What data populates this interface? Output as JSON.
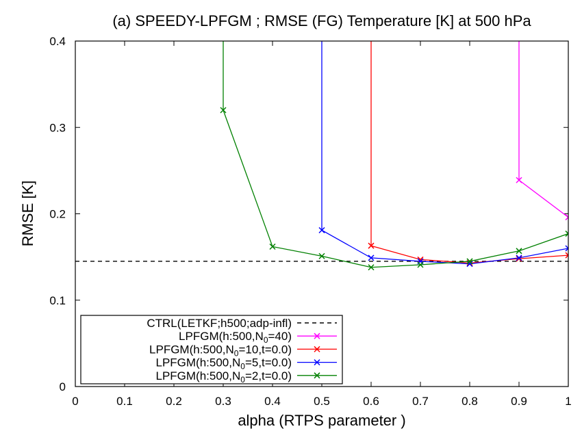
{
  "chart_data": {
    "type": "line",
    "title": "(a) SPEEDY-LPFGM ; RMSE (FG) Temperature [K] at 500 hPa",
    "xlabel": "alpha (RTPS parameter )",
    "ylabel": "RMSE [K]",
    "xlim": [
      0,
      1
    ],
    "ylim": [
      0,
      0.4
    ],
    "xticks": [
      0,
      0.1,
      0.2,
      0.3,
      0.4,
      0.5,
      0.6,
      0.7,
      0.8,
      0.9,
      1
    ],
    "yticks": [
      0,
      0.1,
      0.2,
      0.3,
      0.4
    ],
    "xtick_labels": [
      "0",
      "0.1",
      "0.2",
      "0.3",
      "0.4",
      "0.5",
      "0.6",
      "0.7",
      "0.8",
      "0.9",
      "1"
    ],
    "ytick_labels": [
      "0",
      "0.1",
      "0.2",
      "0.3",
      "0.4"
    ],
    "grid": false,
    "legend_position": "bottom-left",
    "reference_line": {
      "label": "CTRL(LETKF;h500;adp-infl)",
      "y": 0.145,
      "color": "#000000",
      "style": "dashed"
    },
    "series": [
      {
        "label_prefix": "LPFGM(h:500,N",
        "label_sub": "0",
        "label_suffix": "=40)",
        "color": "#ff00ff",
        "x": [
          0.9,
          0.9,
          1.0
        ],
        "y": [
          0.45,
          0.239,
          0.196
        ],
        "markers": [
          false,
          true,
          true
        ]
      },
      {
        "label_prefix": "LPFGM(h:500,N",
        "label_sub": "0",
        "label_suffix": "=10,t=0.0)",
        "color": "#ff0000",
        "x": [
          0.6,
          0.6,
          0.7,
          0.8,
          0.9,
          1.0
        ],
        "y": [
          0.45,
          0.163,
          0.147,
          0.143,
          0.148,
          0.152
        ],
        "markers": [
          false,
          true,
          true,
          true,
          true,
          true
        ]
      },
      {
        "label_prefix": "LPFGM(h:500,N",
        "label_sub": "0",
        "label_suffix": "=5,t=0.0)",
        "color": "#0000ff",
        "x": [
          0.5,
          0.5,
          0.6,
          0.7,
          0.8,
          0.9,
          1.0
        ],
        "y": [
          0.45,
          0.181,
          0.149,
          0.145,
          0.142,
          0.149,
          0.16
        ],
        "markers": [
          false,
          true,
          true,
          true,
          true,
          true,
          true
        ]
      },
      {
        "label_prefix": "LPFGM(h:500,N",
        "label_sub": "0",
        "label_suffix": "=2,t=0.0)",
        "color": "#008000",
        "x": [
          0.3,
          0.3,
          0.4,
          0.5,
          0.6,
          0.7,
          0.8,
          0.9,
          1.0
        ],
        "y": [
          0.45,
          0.32,
          0.162,
          0.151,
          0.138,
          0.141,
          0.145,
          0.157,
          0.177
        ],
        "markers": [
          false,
          true,
          true,
          true,
          true,
          true,
          true,
          true,
          true
        ]
      }
    ]
  }
}
